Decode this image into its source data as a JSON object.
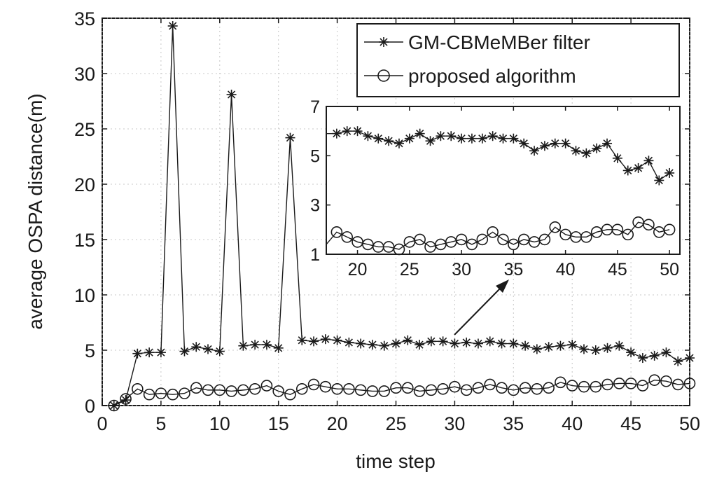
{
  "chart_data": [
    {
      "type": "line",
      "xlabel": "time step",
      "ylabel": "average OSPA distance(m)",
      "xlim": [
        0,
        50
      ],
      "ylim": [
        0,
        35
      ],
      "xticks": [
        "0",
        "5",
        "10",
        "15",
        "20",
        "25",
        "30",
        "35",
        "40",
        "45",
        "50"
      ],
      "yticks": [
        "0",
        "5",
        "10",
        "15",
        "20",
        "25",
        "30",
        "35"
      ],
      "legend_position": "top-right",
      "x": [
        1,
        2,
        3,
        4,
        5,
        6,
        7,
        8,
        9,
        10,
        11,
        12,
        13,
        14,
        15,
        16,
        17,
        18,
        19,
        20,
        21,
        22,
        23,
        24,
        25,
        26,
        27,
        28,
        29,
        30,
        31,
        32,
        33,
        34,
        35,
        36,
        37,
        38,
        39,
        40,
        41,
        42,
        43,
        44,
        45,
        46,
        47,
        48,
        49,
        50
      ],
      "series": [
        {
          "name": "GM-CBMeMBer filter",
          "marker": "asterisk",
          "values": [
            0,
            0.5,
            4.7,
            4.8,
            4.8,
            34.3,
            4.9,
            5.3,
            5.1,
            4.9,
            28.1,
            5.4,
            5.5,
            5.5,
            5.2,
            24.2,
            5.9,
            5.8,
            6.0,
            5.9,
            5.7,
            5.6,
            5.5,
            5.4,
            5.6,
            5.9,
            5.5,
            5.8,
            5.8,
            5.6,
            5.7,
            5.6,
            5.8,
            5.6,
            5.6,
            5.4,
            5.1,
            5.3,
            5.4,
            5.5,
            5.1,
            5.0,
            5.2,
            5.4,
            4.8,
            4.3,
            4.5,
            4.8,
            4.0,
            4.3
          ]
        },
        {
          "name": "proposed algorithm",
          "marker": "circle",
          "values": [
            0,
            0.6,
            1.5,
            1.0,
            1.1,
            1.0,
            1.1,
            1.6,
            1.4,
            1.4,
            1.3,
            1.4,
            1.5,
            1.8,
            1.3,
            1.0,
            1.5,
            1.9,
            1.7,
            1.5,
            1.5,
            1.4,
            1.3,
            1.3,
            1.6,
            1.6,
            1.3,
            1.4,
            1.5,
            1.7,
            1.4,
            1.6,
            1.9,
            1.6,
            1.4,
            1.6,
            1.5,
            1.6,
            2.1,
            1.8,
            1.7,
            1.7,
            1.9,
            2.0,
            2.0,
            1.8,
            2.3,
            2.2,
            1.9,
            2.0
          ]
        }
      ]
    },
    {
      "type": "line",
      "inset": true,
      "xlim": [
        17,
        51
      ],
      "ylim": [
        1,
        7
      ],
      "xticks": [
        "20",
        "25",
        "30",
        "35",
        "40",
        "45",
        "50"
      ],
      "yticks": [
        "1",
        "3",
        "5",
        "7"
      ],
      "x": [
        17,
        18,
        19,
        20,
        21,
        22,
        23,
        24,
        25,
        26,
        27,
        28,
        29,
        30,
        31,
        32,
        33,
        34,
        35,
        36,
        37,
        38,
        39,
        40,
        41,
        42,
        43,
        44,
        45,
        46,
        47,
        48,
        49,
        50
      ],
      "series": [
        {
          "name": "GM-CBMeMBer filter",
          "marker": "asterisk",
          "values": [
            5.9,
            5.9,
            6.0,
            6.0,
            5.8,
            5.7,
            5.6,
            5.5,
            5.7,
            5.9,
            5.6,
            5.8,
            5.8,
            5.7,
            5.7,
            5.7,
            5.8,
            5.7,
            5.7,
            5.5,
            5.2,
            5.4,
            5.5,
            5.5,
            5.2,
            5.1,
            5.3,
            5.5,
            4.9,
            4.4,
            4.5,
            4.8,
            4.0,
            4.3
          ]
        },
        {
          "name": "proposed algorithm",
          "marker": "circle",
          "values": [
            1.4,
            1.9,
            1.7,
            1.5,
            1.4,
            1.3,
            1.3,
            1.2,
            1.5,
            1.6,
            1.3,
            1.4,
            1.5,
            1.6,
            1.4,
            1.6,
            1.9,
            1.6,
            1.4,
            1.6,
            1.5,
            1.6,
            2.1,
            1.8,
            1.7,
            1.7,
            1.9,
            2.0,
            2.0,
            1.8,
            2.3,
            2.2,
            1.9,
            2.0
          ]
        }
      ]
    }
  ]
}
